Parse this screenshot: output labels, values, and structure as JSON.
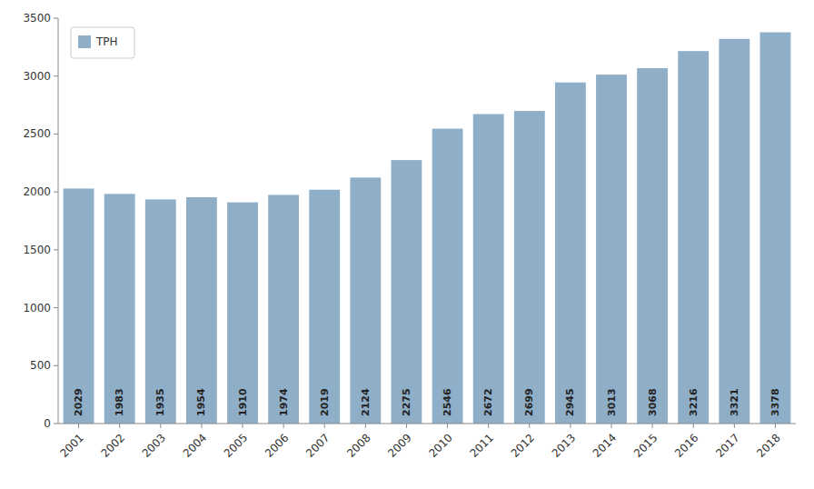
{
  "chart_data": {
    "type": "bar",
    "categories": [
      "2001",
      "2002",
      "2003",
      "2004",
      "2005",
      "2006",
      "2007",
      "2008",
      "2009",
      "2010",
      "2011",
      "2012",
      "2013",
      "2014",
      "2015",
      "2016",
      "2017",
      "2018"
    ],
    "series": [
      {
        "name": "TPH",
        "color": "#8FAEC8",
        "values": [
          2029,
          1983,
          1935,
          1954,
          1910,
          1974,
          2019,
          2124,
          2275,
          2546,
          2672,
          2699,
          2945,
          3013,
          3068,
          3216,
          3321,
          3378
        ]
      }
    ],
    "ylim": [
      0,
      3500
    ],
    "yticks": [
      0,
      500,
      1000,
      1500,
      2000,
      2500,
      3000,
      3500
    ],
    "grid": false,
    "legend": "upper left",
    "data_labels": true
  }
}
